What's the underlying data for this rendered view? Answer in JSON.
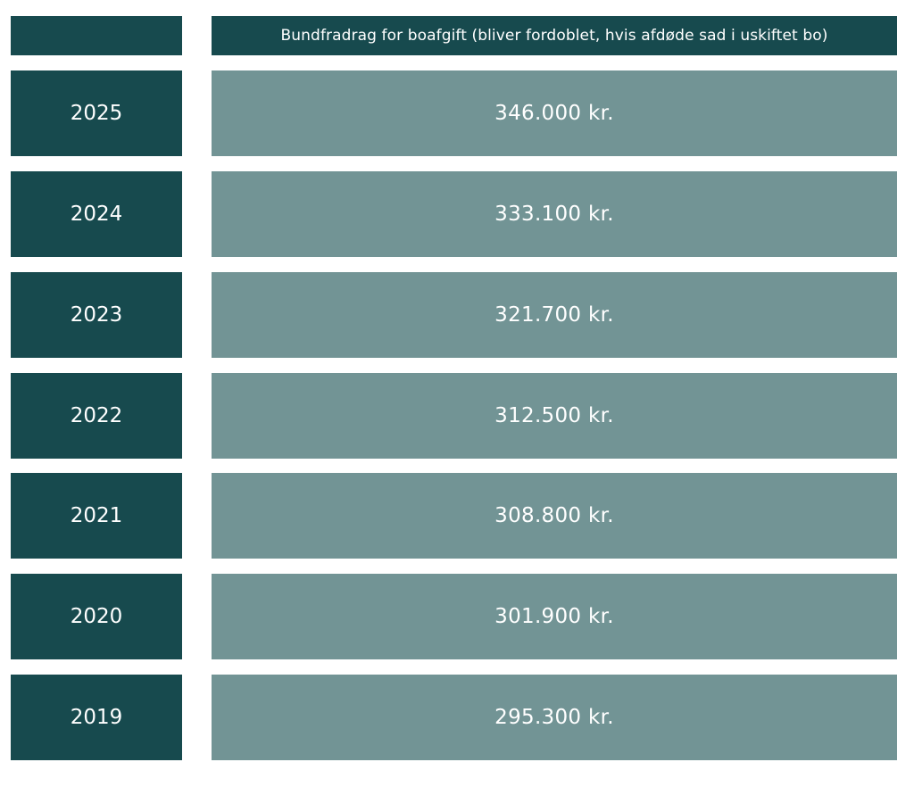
{
  "header": {
    "title": "Bundfradrag for boafgift (bliver fordoblet, hvis afdøde sad i uskiftet bo)"
  },
  "rows": [
    {
      "year": "2025",
      "amount": "346.000 kr."
    },
    {
      "year": "2024",
      "amount": "333.100 kr."
    },
    {
      "year": "2023",
      "amount": "321.700 kr."
    },
    {
      "year": "2022",
      "amount": "312.500 kr."
    },
    {
      "year": "2021",
      "amount": "308.800 kr."
    },
    {
      "year": "2020",
      "amount": "301.900 kr."
    },
    {
      "year": "2019",
      "amount": "295.300 kr."
    }
  ],
  "colors": {
    "dark_teal": "#174a4e",
    "light_teal": "#729495",
    "text": "#ffffff"
  }
}
